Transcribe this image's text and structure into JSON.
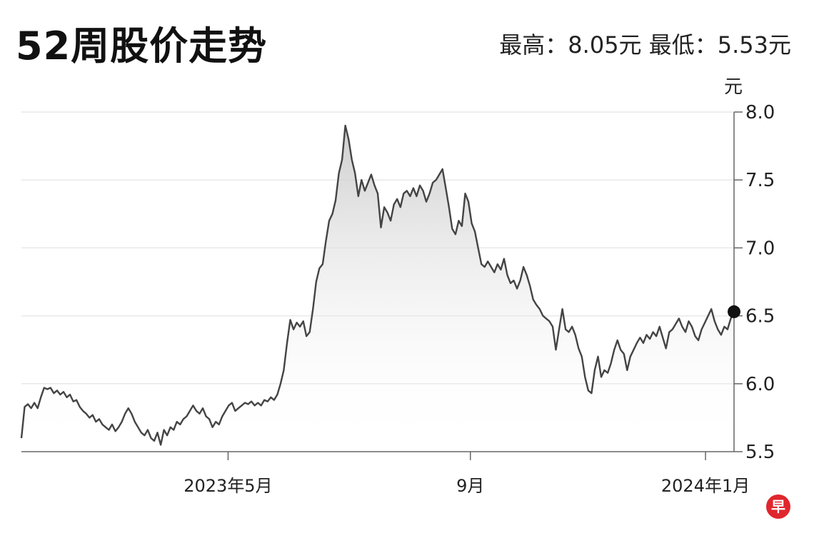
{
  "header": {
    "title": "52周股价走势",
    "high": "最高：8.05元",
    "low": "最低：5.53元"
  },
  "logo": {
    "text": "早",
    "color": "#e0262d"
  },
  "chart_data": {
    "type": "area",
    "title": "52周股价走势",
    "ylabel": "元",
    "ylim": [
      5.5,
      8.0
    ],
    "yticks": [
      "5.5",
      "6.0",
      "6.5",
      "7.0",
      "7.5",
      "8.0"
    ],
    "ytick_values": [
      5.5,
      6.0,
      6.5,
      7.0,
      7.5,
      8.0
    ],
    "xticks": [
      "2023年5月",
      "9月",
      "2024年1月"
    ],
    "xtick_positions": [
      0.29,
      0.63,
      0.96
    ],
    "grid": "horizontal",
    "line_color": "#444444",
    "last_point_marker": true,
    "series": [
      {
        "values": [
          5.6,
          5.83,
          5.85,
          5.82,
          5.86,
          5.82,
          5.9,
          5.97,
          5.96,
          5.97,
          5.93,
          5.95,
          5.92,
          5.94,
          5.9,
          5.92,
          5.87,
          5.88,
          5.83,
          5.8,
          5.78,
          5.75,
          5.77,
          5.72,
          5.74,
          5.7,
          5.68,
          5.66,
          5.7,
          5.65,
          5.68,
          5.72,
          5.78,
          5.82,
          5.78,
          5.72,
          5.68,
          5.64,
          5.62,
          5.66,
          5.6,
          5.58,
          5.64,
          5.55,
          5.66,
          5.62,
          5.68,
          5.66,
          5.72,
          5.7,
          5.74,
          5.76,
          5.8,
          5.84,
          5.8,
          5.78,
          5.82,
          5.76,
          5.74,
          5.68,
          5.72,
          5.7,
          5.76,
          5.8,
          5.84,
          5.86,
          5.8,
          5.82,
          5.84,
          5.86,
          5.85,
          5.87,
          5.84,
          5.86,
          5.84,
          5.88,
          5.87,
          5.9,
          5.88,
          5.92,
          6.0,
          6.1,
          6.3,
          6.47,
          6.4,
          6.45,
          6.42,
          6.46,
          6.35,
          6.38,
          6.55,
          6.75,
          6.85,
          6.88,
          7.05,
          7.2,
          7.25,
          7.35,
          7.55,
          7.65,
          7.9,
          7.8,
          7.65,
          7.55,
          7.38,
          7.5,
          7.42,
          7.48,
          7.54,
          7.46,
          7.4,
          7.15,
          7.3,
          7.26,
          7.2,
          7.32,
          7.36,
          7.3,
          7.4,
          7.42,
          7.38,
          7.44,
          7.38,
          7.46,
          7.42,
          7.34,
          7.4,
          7.48,
          7.5,
          7.54,
          7.58,
          7.44,
          7.3,
          7.14,
          7.1,
          7.2,
          7.16,
          7.4,
          7.34,
          7.18,
          7.12,
          7.0,
          6.88,
          6.86,
          6.9,
          6.86,
          6.82,
          6.88,
          6.84,
          6.92,
          6.8,
          6.74,
          6.76,
          6.7,
          6.76,
          6.86,
          6.8,
          6.72,
          6.62,
          6.58,
          6.55,
          6.5,
          6.48,
          6.46,
          6.42,
          6.25,
          6.4,
          6.55,
          6.4,
          6.38,
          6.42,
          6.36,
          6.26,
          6.2,
          6.05,
          5.95,
          5.93,
          6.1,
          6.2,
          6.05,
          6.1,
          6.08,
          6.15,
          6.25,
          6.32,
          6.25,
          6.22,
          6.1,
          6.2,
          6.25,
          6.3,
          6.34,
          6.3,
          6.36,
          6.33,
          6.38,
          6.35,
          6.42,
          6.34,
          6.26,
          6.38,
          6.4,
          6.44,
          6.48,
          6.42,
          6.38,
          6.46,
          6.42,
          6.35,
          6.32,
          6.4,
          6.45,
          6.5,
          6.55,
          6.46,
          6.4,
          6.36,
          6.42,
          6.4,
          6.48,
          6.53
        ]
      }
    ]
  }
}
